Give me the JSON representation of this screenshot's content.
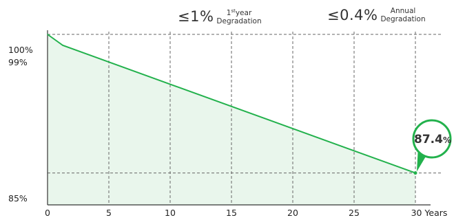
{
  "header": {
    "first_year": {
      "value": "≤1%",
      "label_sup_pre": "1",
      "label_sup": "st",
      "label_sup_post": "year",
      "label": "Degradation"
    },
    "annual": {
      "value": "≤0.4%",
      "label_top": "Annual",
      "label": "Degradation"
    }
  },
  "callout": {
    "value": "87.4",
    "unit": "%"
  },
  "colors": {
    "line": "#22b14c",
    "fill": "#e9f6ec",
    "grid": "#666666",
    "axis": "#333333"
  },
  "chart_data": {
    "type": "area",
    "x": [
      0,
      1.25,
      30
    ],
    "y": [
      100,
      99,
      87.4
    ],
    "xlim": [
      0,
      30
    ],
    "ylim": [
      84.5,
      100
    ],
    "xticks": [
      {
        "value": 0,
        "label": "0"
      },
      {
        "value": 5,
        "label": "5"
      },
      {
        "value": 10,
        "label": "10"
      },
      {
        "value": 15,
        "label": "15"
      },
      {
        "value": 20,
        "label": "20"
      },
      {
        "value": 25,
        "label": "25"
      },
      {
        "value": 30,
        "label": "30 Years"
      }
    ],
    "yticks": [
      {
        "value": 100,
        "label": "100%"
      },
      {
        "value": 99,
        "label": "99%"
      },
      {
        "value": 85,
        "label": "85%"
      }
    ],
    "hlines": [
      100,
      87.4
    ],
    "vgrid": [
      5,
      10,
      15,
      20,
      25,
      30
    ],
    "grid": true
  }
}
